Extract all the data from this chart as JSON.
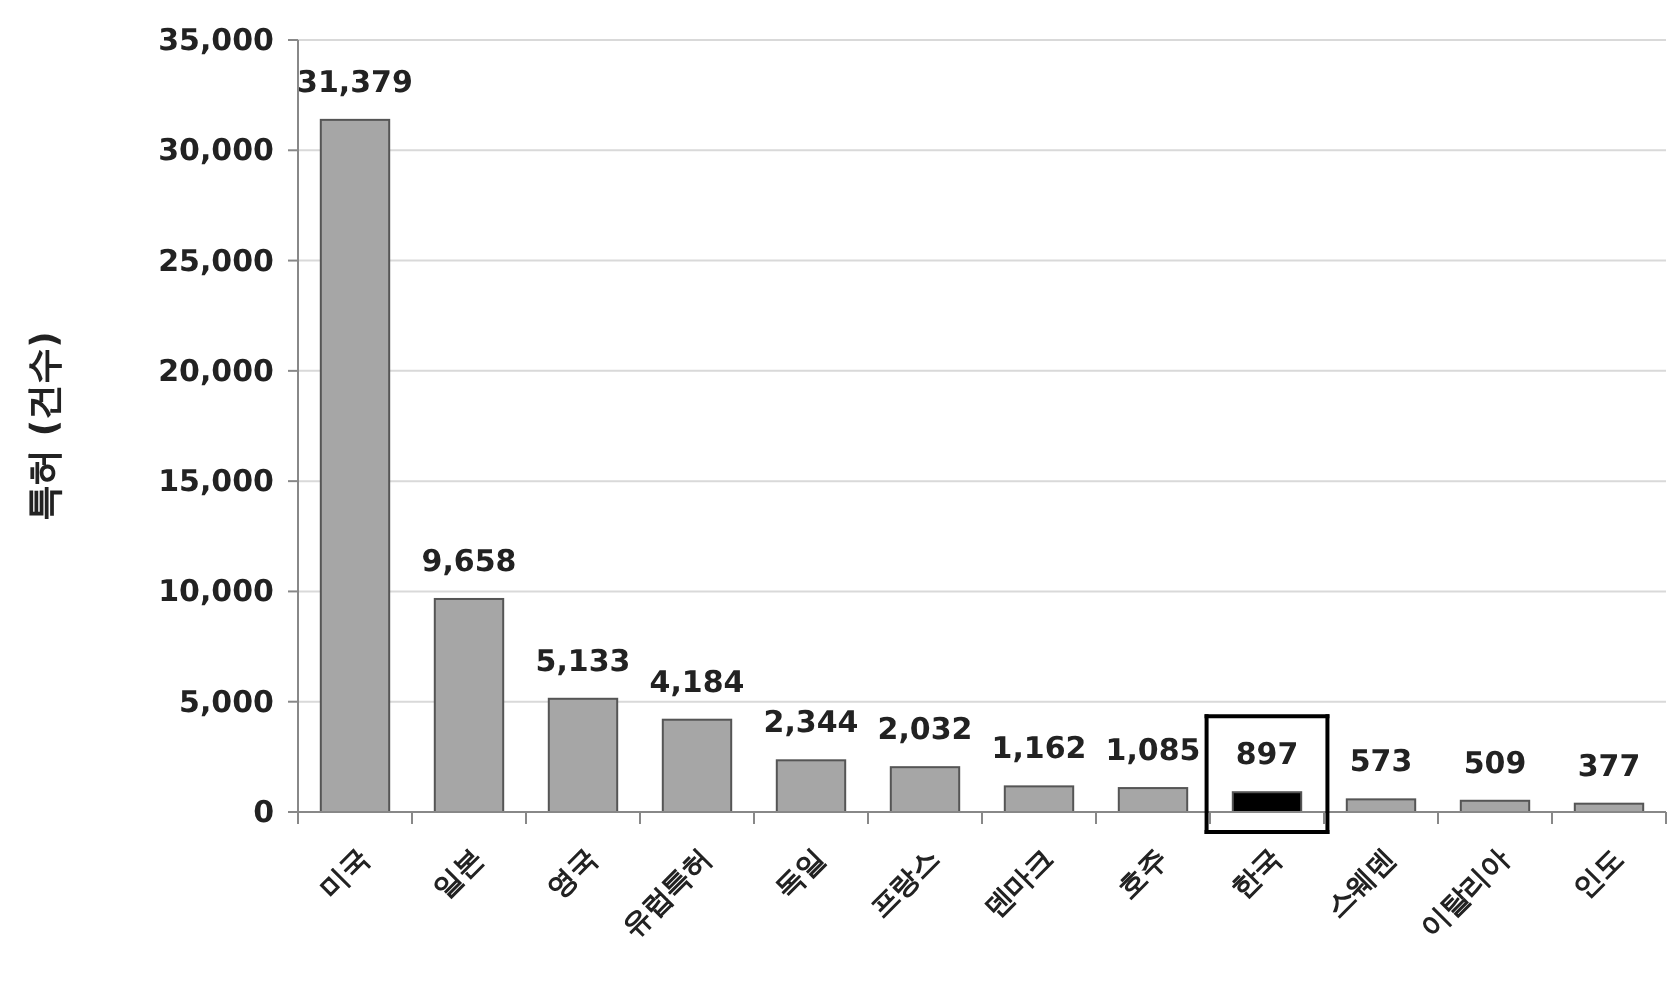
{
  "chart_data": {
    "type": "bar",
    "ylabel": "특허 (건수)",
    "categories": [
      "미국",
      "일본",
      "영국",
      "유럽특허",
      "독일",
      "프랑스",
      "덴마크",
      "호주",
      "한국",
      "스웨덴",
      "이탈리아",
      "인도"
    ],
    "values": [
      31379,
      9658,
      5133,
      4184,
      2344,
      2032,
      1162,
      1085,
      897,
      573,
      509,
      377
    ],
    "colors": [
      "#a6a6a6",
      "#a6a6a6",
      "#a6a6a6",
      "#a6a6a6",
      "#a6a6a6",
      "#a6a6a6",
      "#a6a6a6",
      "#a6a6a6",
      "#000000",
      "#a6a6a6",
      "#a6a6a6",
      "#a6a6a6"
    ],
    "value_labels": [
      "31,379",
      "9,658",
      "5,133",
      "4,184",
      "2,344",
      "2,032",
      "1,162",
      "1,085",
      "897",
      "573",
      "509",
      "377"
    ],
    "ylim": [
      0,
      35000
    ],
    "yticks": [
      {
        "value": 0,
        "label": "0"
      },
      {
        "value": 5000,
        "label": "5,000"
      },
      {
        "value": 10000,
        "label": "10,000"
      },
      {
        "value": 15000,
        "label": "15,000"
      },
      {
        "value": 20000,
        "label": "20,000"
      },
      {
        "value": 25000,
        "label": "25,000"
      },
      {
        "value": 30000,
        "label": "30,000"
      },
      {
        "value": 35000,
        "label": "35,000"
      }
    ],
    "grid": "y"
  }
}
